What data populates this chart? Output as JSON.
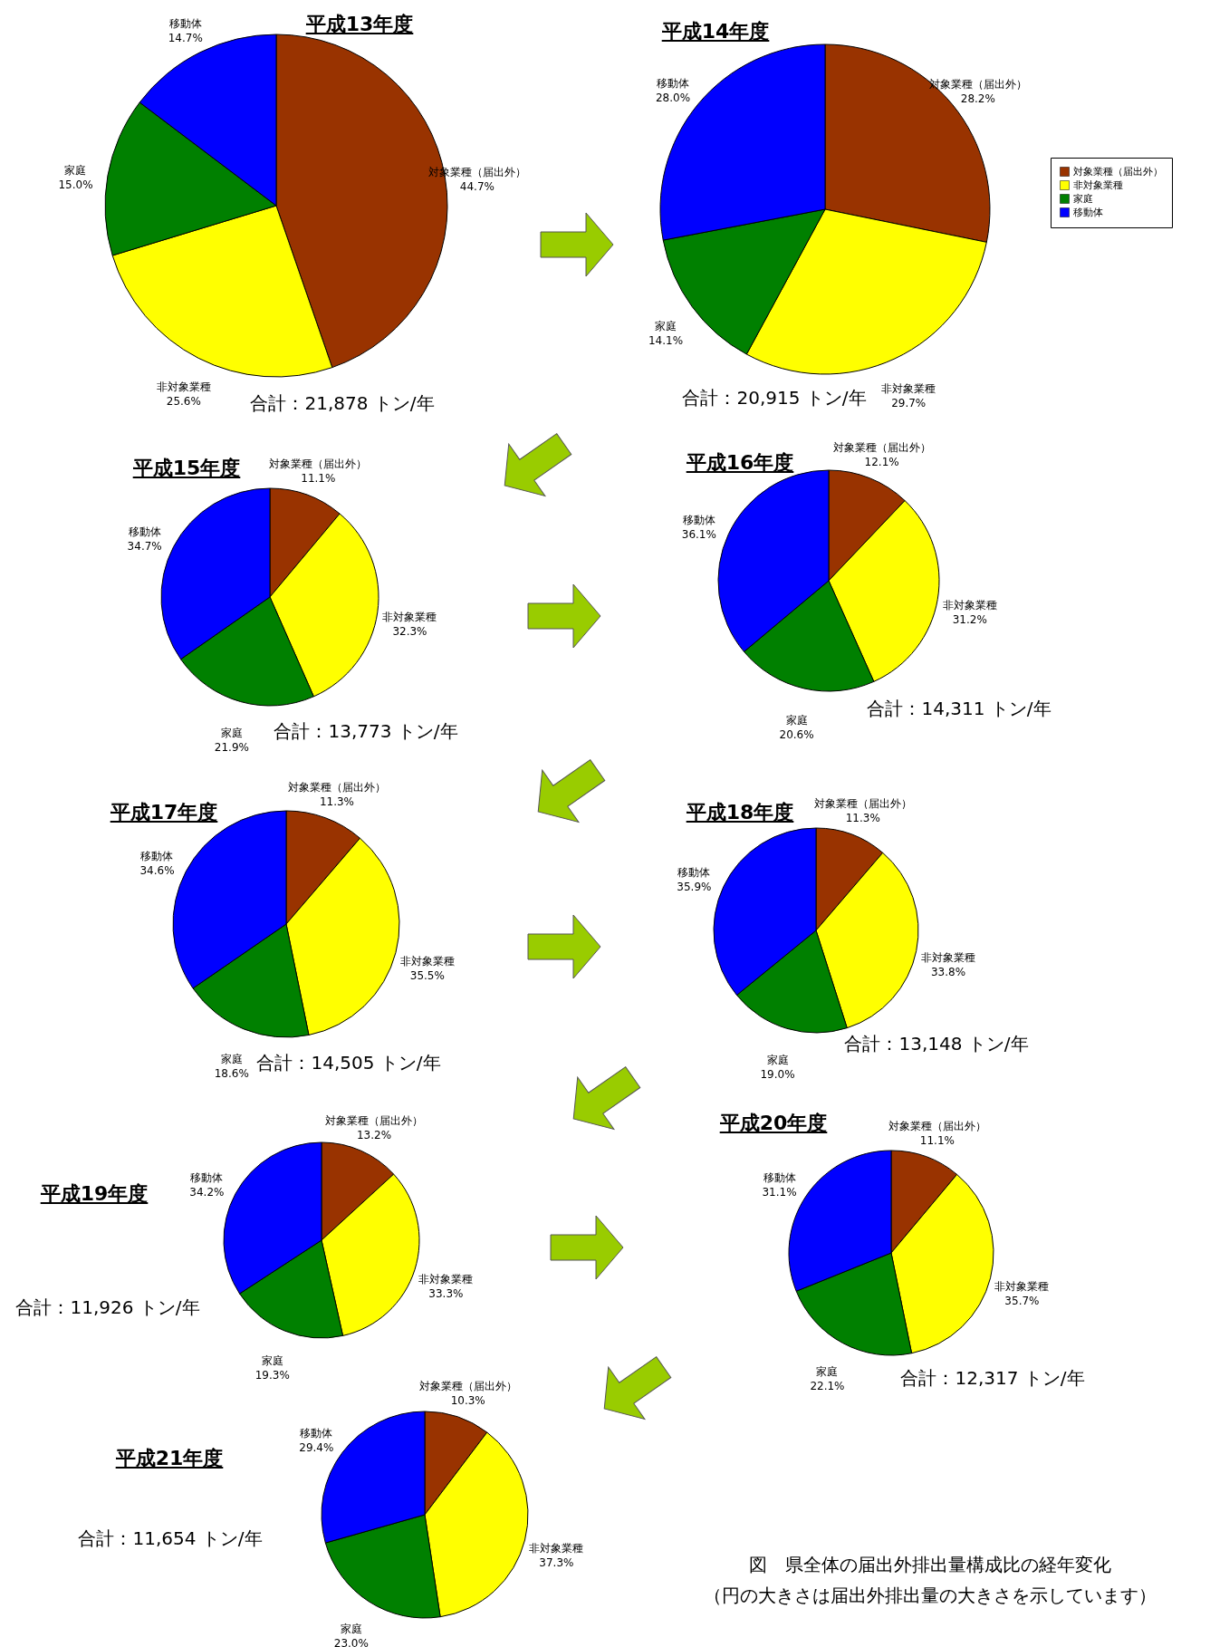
{
  "chart_data": [
    {
      "type": "pie",
      "title": "平成13年度",
      "categories": [
        "対象業種（届出外）",
        "非対象業種",
        "家庭",
        "移動体"
      ],
      "values": [
        44.7,
        25.6,
        15.0,
        14.7
      ],
      "colors": [
        "#993300",
        "#ffff00",
        "#008000",
        "#0000ff"
      ],
      "value_labels": [
        "44.7%",
        "25.6%",
        "15.0%",
        "14.7%"
      ],
      "annotations": [
        "合計：21,878 トン/年"
      ]
    },
    {
      "type": "pie",
      "title": "平成14年度",
      "categories": [
        "対象業種（届出外）",
        "非対象業種",
        "家庭",
        "移動体"
      ],
      "values": [
        28.2,
        29.7,
        14.1,
        28.0
      ],
      "colors": [
        "#993300",
        "#ffff00",
        "#008000",
        "#0000ff"
      ],
      "value_labels": [
        "28.2%",
        "29.7%",
        "14.1%",
        "28.0%"
      ],
      "annotations": [
        "合計：20,915 トン/年"
      ],
      "legend": "right"
    },
    {
      "type": "pie",
      "title": "平成15年度",
      "categories": [
        "対象業種（届出外）",
        "非対象業種",
        "家庭",
        "移動体"
      ],
      "values": [
        11.1,
        32.3,
        21.9,
        34.7
      ],
      "colors": [
        "#993300",
        "#ffff00",
        "#008000",
        "#0000ff"
      ],
      "value_labels": [
        "11.1%",
        "32.3%",
        "21.9%",
        "34.7%"
      ],
      "annotations": [
        "合計：13,773 トン/年"
      ]
    },
    {
      "type": "pie",
      "title": "平成16年度",
      "categories": [
        "対象業種（届出外）",
        "非対象業種",
        "家庭",
        "移動体"
      ],
      "values": [
        12.1,
        31.2,
        20.6,
        36.1
      ],
      "colors": [
        "#993300",
        "#ffff00",
        "#008000",
        "#0000ff"
      ],
      "value_labels": [
        "12.1%",
        "31.2%",
        "20.6%",
        "36.1%"
      ],
      "annotations": [
        "合計：14,311 トン/年"
      ]
    },
    {
      "type": "pie",
      "title": "平成17年度",
      "categories": [
        "対象業種（届出外）",
        "非対象業種",
        "家庭",
        "移動体"
      ],
      "values": [
        11.3,
        35.5,
        18.6,
        34.6
      ],
      "colors": [
        "#993300",
        "#ffff00",
        "#008000",
        "#0000ff"
      ],
      "value_labels": [
        "11.3%",
        "35.5%",
        "18.6%",
        "34.6%"
      ],
      "annotations": [
        "合計：14,505 トン/年"
      ]
    },
    {
      "type": "pie",
      "title": "平成18年度",
      "categories": [
        "対象業種（届出外）",
        "非対象業種",
        "家庭",
        "移動体"
      ],
      "values": [
        11.3,
        33.8,
        19.0,
        35.9
      ],
      "colors": [
        "#993300",
        "#ffff00",
        "#008000",
        "#0000ff"
      ],
      "value_labels": [
        "11.3%",
        "33.8%",
        "19.0%",
        "35.9%"
      ],
      "annotations": [
        "合計：13,148 トン/年"
      ]
    },
    {
      "type": "pie",
      "title": "平成19年度",
      "categories": [
        "対象業種（届出外）",
        "非対象業種",
        "家庭",
        "移動体"
      ],
      "values": [
        13.2,
        33.3,
        19.3,
        34.2
      ],
      "colors": [
        "#993300",
        "#ffff00",
        "#008000",
        "#0000ff"
      ],
      "value_labels": [
        "13.2%",
        "33.3%",
        "19.3%",
        "34.2%"
      ],
      "annotations": [
        "合計：11,926 トン/年"
      ]
    },
    {
      "type": "pie",
      "title": "平成20年度",
      "categories": [
        "対象業種（届出外）",
        "非対象業種",
        "家庭",
        "移動体"
      ],
      "values": [
        11.1,
        35.7,
        22.1,
        31.1
      ],
      "colors": [
        "#993300",
        "#ffff00",
        "#008000",
        "#0000ff"
      ],
      "value_labels": [
        "11.1%",
        "35.7%",
        "22.1%",
        "31.1%"
      ],
      "annotations": [
        "合計：12,317 トン/年"
      ]
    },
    {
      "type": "pie",
      "title": "平成21年度",
      "categories": [
        "対象業種（届出外）",
        "非対象業種",
        "家庭",
        "移動体"
      ],
      "values": [
        10.3,
        37.3,
        23.0,
        29.4
      ],
      "colors": [
        "#993300",
        "#ffff00",
        "#008000",
        "#0000ff"
      ],
      "value_labels": [
        "10.3%",
        "37.3%",
        "23.0%",
        "29.4%"
      ],
      "annotations": [
        "合計：11,654 トン/年",
        "図　県全体の届出外排出量構成比の経年変化",
        "（円の大きさは届出外排出量の大きさを示しています）"
      ]
    }
  ]
}
